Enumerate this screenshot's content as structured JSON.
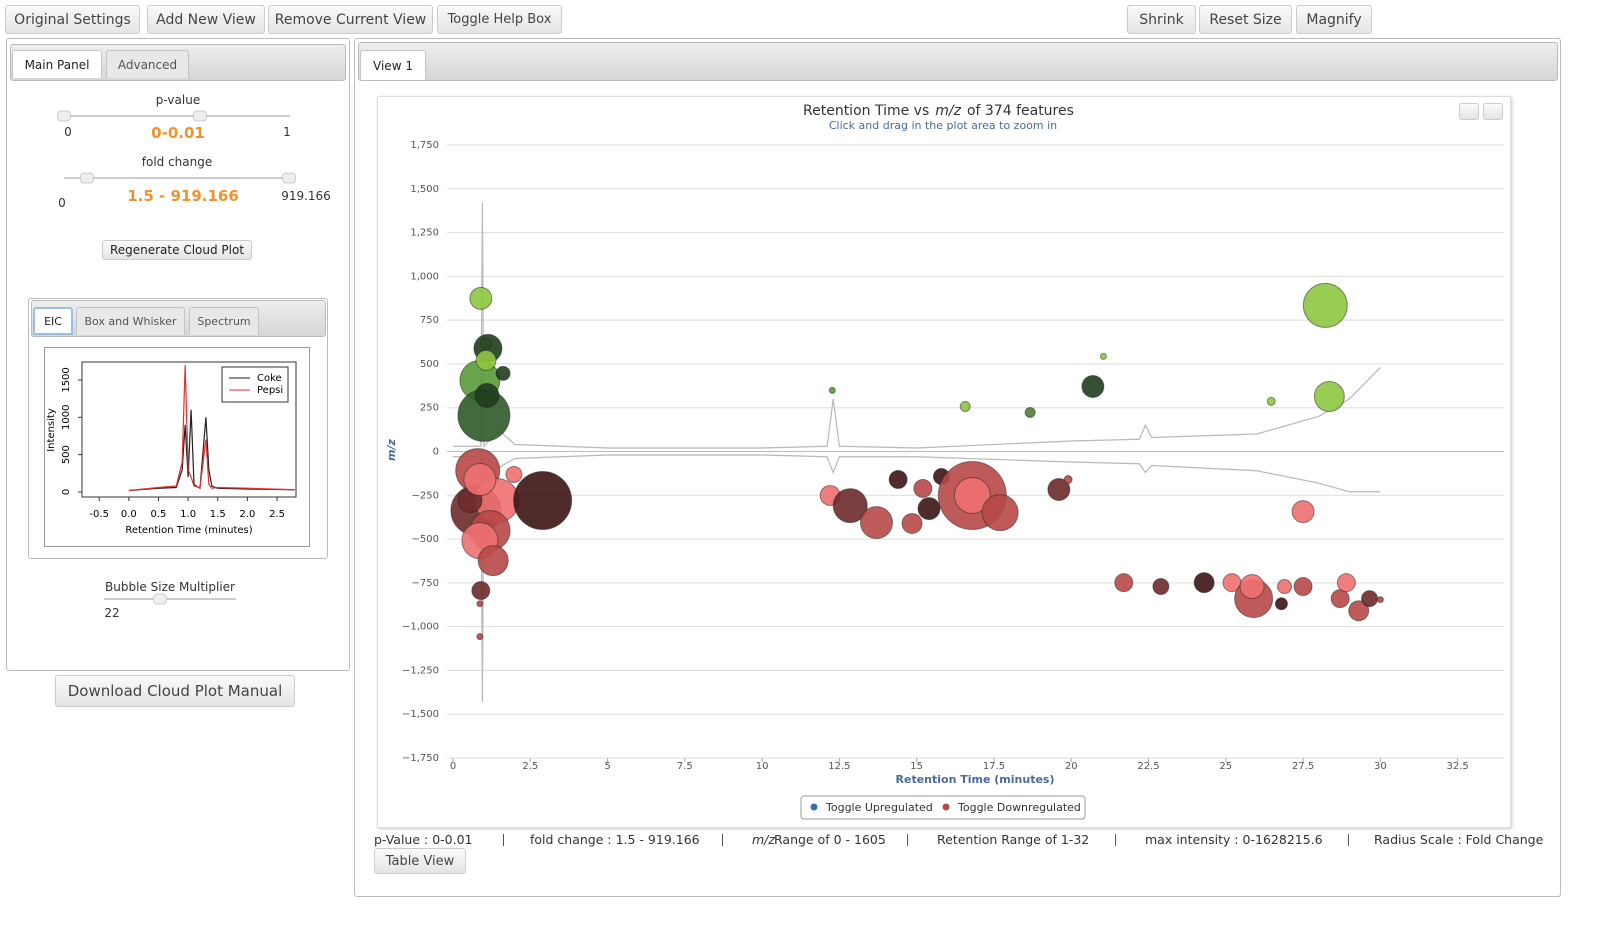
{
  "toolbar": {
    "left": [
      "Original Settings",
      "Add New View",
      "Remove Current View",
      "Toggle Help Box"
    ],
    "right": [
      "Shrink",
      "Reset Size",
      "Magnify"
    ]
  },
  "sidebar": {
    "tabs": [
      "Main Panel",
      "Advanced"
    ],
    "pvalue": {
      "label": "p-value",
      "min": 0,
      "max": 1,
      "range": "0-0.01"
    },
    "fold_change": {
      "label": "fold change",
      "min": 0,
      "max": 919.166,
      "range": "1.5 - 919.166"
    },
    "regenerate": "Regenerate Cloud Plot",
    "plot_tabs": [
      "EIC",
      "Box and Whisker",
      "Spectrum"
    ],
    "eic": {
      "type": "line",
      "xlabel": "Retention Time (minutes)",
      "ylabel": "Intensity",
      "xlim": [
        -0.79,
        2.82
      ],
      "ylim": [
        -67,
        1740
      ],
      "xticks": [
        -0.5,
        {
          "value": 0,
          "label": "0.0"
        },
        0.5,
        {
          "value": 1,
          "label": "1.0"
        },
        1.5,
        {
          "value": 2,
          "label": "2.0"
        },
        2.5
      ],
      "yticks": [
        0,
        500,
        1000,
        1500
      ],
      "series": [
        {
          "name": "Coke",
          "color": "#222222",
          "x": [
            0,
            0.5,
            0.8,
            0.9,
            0.95,
            1.0,
            1.05,
            1.1,
            1.2,
            1.3,
            1.35,
            1.4,
            1.5,
            2,
            2.8
          ],
          "values": [
            20,
            50,
            60,
            300,
            900,
            200,
            1100,
            100,
            50,
            1000,
            300,
            80,
            50,
            40,
            30
          ]
        },
        {
          "name": "Pepsi",
          "color": "#e03030",
          "x": [
            0,
            0.5,
            0.8,
            0.9,
            0.95,
            1.0,
            1.05,
            1.1,
            1.2,
            1.3,
            1.35,
            1.4,
            1.5,
            2,
            2.8
          ],
          "values": [
            20,
            60,
            80,
            400,
            1700,
            300,
            200,
            80,
            60,
            700,
            100,
            50,
            60,
            50,
            30
          ]
        }
      ]
    },
    "bubble": {
      "label": "Bubble Size Multiplier",
      "value": 22
    },
    "download": "Download Cloud Plot Manual"
  },
  "view": {
    "tab": "View 1",
    "chart": {
      "type": "scatter",
      "title": "Retention Time vs",
      "title_mz": "m/z",
      "title_end": "of 374 features",
      "subtitle": "Click and drag in the plot area to zoom in",
      "xlabel": "Retention Time (minutes)",
      "ylabel": "m/z",
      "xlim": [
        0,
        34
      ],
      "ylim": [
        -1750,
        1750
      ],
      "xticks": [
        0,
        2.5,
        5,
        7.5,
        10,
        12.5,
        15,
        17.5,
        20,
        22.5,
        25,
        27.5,
        30,
        32.5
      ],
      "yticks": [
        {
          "value": -1750,
          "label": "−1,750"
        },
        {
          "value": -1500,
          "label": "−1,500"
        },
        {
          "value": -1250,
          "label": "−1,250"
        },
        {
          "value": -1000,
          "label": "−1,000"
        },
        {
          "value": -750,
          "label": "−750"
        },
        {
          "value": -500,
          "label": "−500"
        },
        {
          "value": -250,
          "label": "−250"
        },
        0,
        250,
        500,
        750,
        {
          "value": 1000,
          "label": "1,000"
        },
        {
          "value": 1250,
          "label": "1,250"
        },
        {
          "value": 1500,
          "label": "1,500"
        },
        {
          "value": 1750,
          "label": "1,750"
        }
      ],
      "grid": true,
      "series": [
        {
          "name": "Toggle Upregulated",
          "color": "#3a6fb0",
          "x": [
            0.9,
            1.07,
            1.13,
            0.87,
            1.0,
            1.62,
            1.07,
            1.1,
            12.27,
            16.57,
            18.67,
            20.7,
            21.04,
            26.47,
            28.22,
            28.35
          ],
          "values": [
            874,
            617,
            589,
            406,
            206,
            446,
            520,
            320,
            349,
            257,
            223,
            371,
            543,
            286,
            834,
            314
          ],
          "sizes": [
            11,
            6,
            14,
            20,
            26,
            7,
            10,
            12,
            3,
            5,
            5,
            11,
            3,
            4,
            22,
            15
          ],
          "colors": [
            "#8ec63f",
            "#8ec63f",
            "#1f3d1f",
            "#5a9a3a",
            "#2f5a2a",
            "#1f3d1f",
            "#8ec63f",
            "#1f3d1f",
            "#5a9a3a",
            "#8ec63f",
            "#4f7f3a",
            "#1f3d1f",
            "#8ec63f",
            "#8ec63f",
            "#8ec63f",
            "#8ec63f"
          ]
        },
        {
          "name": "Toggle Downregulated",
          "color": "#b84848",
          "x": [
            0.8,
            0.74,
            1.42,
            1.2,
            0.87,
            1.3,
            0.55,
            0.87,
            1.97,
            2.9,
            0.9,
            0.87,
            0.87,
            12.2,
            12.85,
            13.7,
            14.4,
            14.85,
            15.2,
            15.4,
            15.8,
            16.8,
            16.8,
            17.7,
            19.6,
            19.9,
            27.5,
            21.7,
            22.9,
            24.3,
            25.2,
            25.9,
            25.85,
            26.8,
            26.9,
            27.5,
            28.7,
            28.9,
            29.3,
            29.65,
            30.0
          ],
          "values": [
            -109,
            -337,
            -280,
            -451,
            -509,
            -623,
            -280,
            -160,
            -131,
            -280,
            -794,
            -869,
            -1057,
            -251,
            -309,
            -406,
            -160,
            -411,
            -211,
            -326,
            -143,
            -251,
            -251,
            -349,
            -217,
            -160,
            -343,
            -749,
            -771,
            -749,
            -749,
            -840,
            -771,
            -869,
            -771,
            -771,
            -840,
            -749,
            -909,
            -840,
            -846
          ],
          "sizes": [
            22,
            25,
            22,
            20,
            18,
            15,
            12,
            16,
            8,
            29,
            9,
            3,
            3,
            10,
            17,
            16,
            9,
            10,
            9,
            11,
            8,
            34,
            18,
            18,
            11,
            4,
            11,
            9,
            8,
            10,
            9,
            19,
            12,
            6,
            7,
            9,
            9,
            9,
            10,
            8,
            3
          ],
          "colors": [
            "#b84848",
            "#6e2a2a",
            "#f07070",
            "#b84848",
            "#f07070",
            "#b84848",
            "#6e2a2a",
            "#f07070",
            "#f07070",
            "#3d1414",
            "#6e2a2a",
            "#b84848",
            "#b84848",
            "#f07070",
            "#6e2a2a",
            "#b84848",
            "#3d1414",
            "#b84848",
            "#b84848",
            "#3d1414",
            "#3d1414",
            "#b84848",
            "#f07070",
            "#b84848",
            "#6e2a2a",
            "#b84848",
            "#f07070",
            "#b84848",
            "#6e2a2a",
            "#3d1414",
            "#f07070",
            "#b84848",
            "#f07070",
            "#3d1414",
            "#f07070",
            "#b84848",
            "#b84848",
            "#f07070",
            "#b84848",
            "#6e2a2a",
            "#b84848"
          ]
        }
      ],
      "trace_color": "#b8b8b8",
      "traces": [
        {
          "x": [
            0,
            0.9,
            0.95,
            1.0,
            1.5,
            2,
            5,
            10,
            12.1,
            12.3,
            12.5,
            15,
            20,
            22.2,
            22.4,
            22.6,
            26,
            28,
            29,
            30
          ],
          "values": [
            30,
            30,
            1420,
            30,
            120,
            40,
            20,
            20,
            30,
            300,
            30,
            20,
            60,
            70,
            150,
            80,
            100,
            200,
            300,
            480
          ]
        },
        {
          "x": [
            0,
            0.9,
            0.95,
            1.0,
            1.5,
            2,
            5,
            10,
            12.1,
            12.3,
            12.5,
            15,
            20,
            22.2,
            22.4,
            22.6,
            26,
            28,
            29,
            30
          ],
          "values": [
            -30,
            -30,
            -1430,
            -30,
            -90,
            -40,
            -20,
            -20,
            -30,
            -120,
            -30,
            -30,
            -60,
            -70,
            -120,
            -80,
            -110,
            -180,
            -230,
            -230
          ]
        }
      ]
    },
    "status_mz": "m/z",
    "status": [
      "p-Value : 0-0.01",
      "fold change : 1.5 - 919.166",
      "Range of 0 - 1605",
      "Retention Range of 1-32",
      "max intensity : 0-1628215.6",
      "Radius Scale : Fold Change"
    ],
    "table_button": "Table View"
  }
}
